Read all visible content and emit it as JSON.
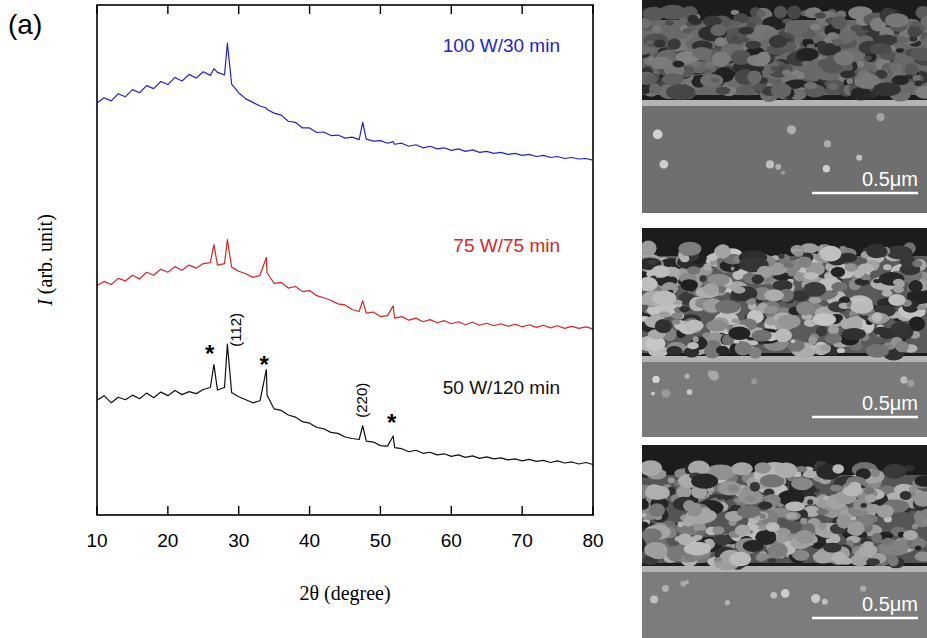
{
  "chart_data": {
    "type": "line",
    "panel_label": "(a)",
    "x_label": "2θ (degree)",
    "y_label": "I (arb. unit)",
    "xlim": [
      10,
      80
    ],
    "xticks": [
      10,
      20,
      30,
      40,
      50,
      60,
      70,
      80
    ],
    "ylim": [
      0,
      100
    ],
    "grid": false,
    "tick_labels": "x",
    "x": [
      10,
      11,
      12,
      13,
      14,
      15,
      16,
      17,
      18,
      19,
      20,
      21,
      22,
      23,
      24,
      25,
      26,
      26.5,
      27,
      28,
      28.4,
      29,
      30,
      31,
      32,
      33,
      33.9,
      34,
      35,
      36,
      37,
      38,
      39,
      40,
      41,
      42,
      43,
      44,
      45,
      46,
      47,
      47.5,
      48,
      49,
      50,
      51,
      51.8,
      52,
      53,
      54,
      55,
      56,
      57,
      58,
      59,
      60,
      61,
      62,
      63,
      64,
      65,
      66,
      67,
      68,
      69,
      70,
      71,
      72,
      73,
      74,
      75,
      76,
      77,
      78,
      79,
      80
    ],
    "series": [
      {
        "name": "100 W/30 min",
        "color": "#2222dd",
        "line_style": "solid",
        "values": [
          80.8,
          81.8,
          81.2,
          82.6,
          82.0,
          83.4,
          82.8,
          84.2,
          83.6,
          85.0,
          84.4,
          85.8,
          85.1,
          86.4,
          85.7,
          86.9,
          86.2,
          87.5,
          86.8,
          86.3,
          92.5,
          84.5,
          82.8,
          81.6,
          80.9,
          80.2,
          79.8,
          79.5,
          78.8,
          78.4,
          77.2,
          77.0,
          75.9,
          75.9,
          75.0,
          75.1,
          74.4,
          74.5,
          73.9,
          74.1,
          73.6,
          77.0,
          73.7,
          73.3,
          73.4,
          72.9,
          73.2,
          72.7,
          72.9,
          72.3,
          72.6,
          72.0,
          72.3,
          71.8,
          72.0,
          71.5,
          71.8,
          71.3,
          71.6,
          71.1,
          71.3,
          70.9,
          71.1,
          70.7,
          70.9,
          70.5,
          70.7,
          70.3,
          70.5,
          70.1,
          70.3,
          69.9,
          70.1,
          69.8,
          69.9,
          69.6
        ]
      },
      {
        "name": "75 W/75 min",
        "color": "#e02222",
        "line_style": "solid",
        "values": [
          45.0,
          45.8,
          45.2,
          46.4,
          45.9,
          47.0,
          46.3,
          47.6,
          47.0,
          48.2,
          47.6,
          48.7,
          48.0,
          49.0,
          48.4,
          49.3,
          49.5,
          53.0,
          49.0,
          49.3,
          54.0,
          48.6,
          47.8,
          47.3,
          46.6,
          47.0,
          50.5,
          47.5,
          45.4,
          45.6,
          44.5,
          44.8,
          43.8,
          44.0,
          43.0,
          42.6,
          42.1,
          41.4,
          41.2,
          40.3,
          39.9,
          42.0,
          39.6,
          39.8,
          38.9,
          39.1,
          41.0,
          38.6,
          38.9,
          38.2,
          38.6,
          37.9,
          38.3,
          37.7,
          38.1,
          37.5,
          37.9,
          37.3,
          37.8,
          37.2,
          37.6,
          37.1,
          37.5,
          37.0,
          37.4,
          36.9,
          37.3,
          36.8,
          37.2,
          36.7,
          37.1,
          36.6,
          37.0,
          36.6,
          36.9,
          36.5
        ]
      },
      {
        "name": "50 W/120 min",
        "color": "#111111",
        "line_style": "solid",
        "values": [
          22.5,
          23.4,
          22.0,
          23.1,
          22.6,
          23.5,
          22.8,
          23.9,
          23.0,
          24.1,
          23.4,
          24.4,
          23.6,
          24.2,
          23.8,
          24.6,
          25.0,
          29.5,
          24.5,
          25.0,
          33.5,
          24.0,
          23.2,
          22.6,
          22.0,
          22.4,
          28.5,
          23.5,
          20.8,
          20.5,
          19.6,
          19.2,
          18.3,
          18.0,
          17.2,
          16.9,
          16.2,
          16.0,
          15.3,
          15.0,
          14.8,
          17.5,
          14.5,
          14.3,
          13.6,
          13.5,
          15.5,
          13.2,
          13.0,
          12.4,
          12.7,
          12.1,
          12.3,
          11.8,
          12.0,
          11.5,
          11.8,
          11.3,
          11.6,
          11.1,
          11.4,
          11.0,
          11.2,
          10.8,
          11.0,
          10.6,
          10.9,
          10.5,
          10.7,
          10.3,
          10.6,
          10.2,
          10.4,
          10.0,
          10.3,
          9.9
        ]
      }
    ],
    "annotations": [
      {
        "text": "*",
        "x": 25.9,
        "y": 31.5
      },
      {
        "text": "(112)",
        "x": 29.6,
        "y": 36.3
      },
      {
        "text": "*",
        "x": 33.6,
        "y": 29.5
      },
      {
        "text": "(220)",
        "x": 47.3,
        "y": 22.5
      },
      {
        "text": "*",
        "x": 51.6,
        "y": 18.0
      }
    ]
  },
  "sem_images": [
    {
      "scale_bar": "0.5μm"
    },
    {
      "scale_bar": "0.5μm"
    },
    {
      "scale_bar": "0.5μm"
    }
  ]
}
